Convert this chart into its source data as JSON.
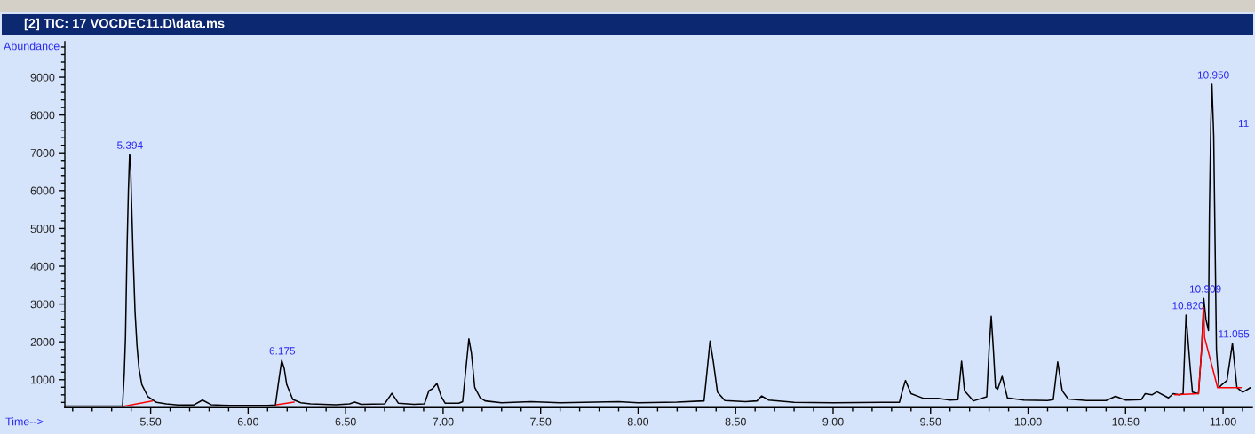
{
  "chart_data": {
    "type": "line",
    "title": "[2] TIC: 17 VOCDEC11.D\\data.ms",
    "xlabel": "Time-->",
    "ylabel": "Abundance",
    "series": [
      {
        "color": "#000000",
        "x": [
          5.06,
          5.1,
          5.2,
          5.3,
          5.35,
          5.356,
          5.365,
          5.371,
          5.379,
          5.386,
          5.392,
          5.396,
          5.401,
          5.41,
          5.42,
          5.43,
          5.44,
          5.455,
          5.485,
          5.53,
          5.58,
          5.64,
          5.72,
          5.766,
          5.81,
          5.9,
          6.0,
          6.1,
          6.14,
          6.155,
          6.172,
          6.185,
          6.198,
          6.229,
          6.27,
          6.32,
          6.45,
          6.52,
          6.547,
          6.58,
          6.7,
          6.737,
          6.77,
          6.85,
          6.904,
          6.927,
          6.945,
          6.968,
          6.99,
          7.01,
          7.08,
          7.1,
          7.115,
          7.132,
          7.145,
          7.162,
          7.19,
          7.215,
          7.3,
          7.45,
          7.6,
          7.9,
          8.0,
          8.2,
          8.338,
          8.355,
          8.369,
          8.385,
          8.407,
          8.445,
          8.55,
          8.61,
          8.634,
          8.67,
          8.8,
          9.0,
          9.25,
          9.34,
          9.355,
          9.371,
          9.4,
          9.462,
          9.538,
          9.6,
          9.64,
          9.659,
          9.674,
          9.72,
          9.788,
          9.8,
          9.811,
          9.822,
          9.833,
          9.844,
          9.867,
          9.894,
          9.978,
          10.1,
          10.129,
          10.152,
          10.175,
          10.206,
          10.3,
          10.4,
          10.448,
          10.5,
          10.58,
          10.6,
          10.635,
          10.661,
          10.72,
          10.744,
          10.775,
          10.795,
          10.81,
          10.831,
          10.843,
          10.874,
          10.89,
          10.901,
          10.912,
          10.925,
          10.93,
          10.937,
          10.943,
          10.952,
          10.959,
          10.966,
          10.979,
          10.99,
          11.02,
          11.048,
          11.071,
          11.101,
          11.14
        ],
        "values": [
          300,
          300,
          300,
          300,
          300,
          310,
          1200,
          2120,
          4470,
          6000,
          6950,
          6900,
          5900,
          4300,
          2800,
          1900,
          1300,
          870,
          560,
          400,
          360,
          330,
          330,
          460,
          340,
          320,
          320,
          320,
          330,
          900,
          1510,
          1300,
          870,
          480,
          390,
          360,
          340,
          360,
          410,
          350,
          360,
          640,
          380,
          350,
          360,
          710,
          760,
          900,
          560,
          380,
          380,
          420,
          1200,
          2080,
          1700,
          800,
          520,
          440,
          390,
          420,
          390,
          420,
          390,
          410,
          440,
          1300,
          2020,
          1500,
          670,
          450,
          420,
          440,
          570,
          460,
          400,
          390,
          400,
          400,
          700,
          980,
          630,
          510,
          510,
          460,
          470,
          1490,
          710,
          440,
          550,
          1800,
          2680,
          1800,
          790,
          750,
          1090,
          520,
          460,
          450,
          470,
          1470,
          710,
          490,
          450,
          450,
          560,
          460,
          470,
          630,
          600,
          680,
          520,
          630,
          600,
          630,
          2710,
          1340,
          670,
          630,
          1810,
          3150,
          2600,
          2300,
          5400,
          7750,
          8810,
          7440,
          4630,
          1800,
          790,
          850,
          980,
          1960,
          790,
          670,
          790
        ]
      },
      {
        "color": "#ff0000",
        "x": [
          5.356,
          5.508,
          5.8,
          6.145,
          6.236,
          8.0,
          10.752,
          10.874,
          10.89,
          10.901,
          10.905,
          10.972,
          11.093
        ],
        "values": [
          290,
          440,
          null,
          340,
          410,
          null,
          600,
          630,
          1810,
          2900,
          2120,
          790,
          790
        ]
      }
    ],
    "annotations": [
      {
        "text": "5.394",
        "x": 5.394,
        "y": 6950
      },
      {
        "text": "6.175",
        "x": 6.175,
        "y": 1510
      },
      {
        "text": "10.820",
        "x": 10.82,
        "y": 2710
      },
      {
        "text": "10.909",
        "x": 10.909,
        "y": 3150
      },
      {
        "text": "10.950",
        "x": 10.95,
        "y": 8810
      },
      {
        "text": "11.055",
        "x": 11.055,
        "y": 1960
      },
      "11"
    ],
    "xlim": [
      5.06,
      11.15
    ],
    "ylim": [
      260,
      9940
    ],
    "xticks": [
      {
        "value": 5.1,
        "label": null
      },
      {
        "value": 5.2,
        "label": null
      },
      {
        "value": 5.3,
        "label": null
      },
      {
        "value": 5.4,
        "label": null
      },
      {
        "value": 5.5,
        "label": "5.50"
      },
      {
        "value": 5.6,
        "label": null
      },
      {
        "value": 5.7,
        "label": null
      },
      {
        "value": 5.8,
        "label": null
      },
      {
        "value": 5.9,
        "label": null
      },
      {
        "value": 6.0,
        "label": "6.00"
      },
      {
        "value": 6.1,
        "label": null
      },
      {
        "value": 6.2,
        "label": null
      },
      {
        "value": 6.3,
        "label": null
      },
      {
        "value": 6.4,
        "label": null
      },
      {
        "value": 6.5,
        "label": "6.50"
      },
      {
        "value": 6.6,
        "label": null
      },
      {
        "value": 6.7,
        "label": null
      },
      {
        "value": 6.8,
        "label": null
      },
      {
        "value": 6.9,
        "label": null
      },
      {
        "value": 7.0,
        "label": "7.00"
      },
      {
        "value": 7.1,
        "label": null
      },
      {
        "value": 7.2,
        "label": null
      },
      {
        "value": 7.3,
        "label": null
      },
      {
        "value": 7.4,
        "label": null
      },
      {
        "value": 7.5,
        "label": "7.50"
      },
      {
        "value": 7.6,
        "label": null
      },
      {
        "value": 7.7,
        "label": null
      },
      {
        "value": 7.8,
        "label": null
      },
      {
        "value": 7.9,
        "label": null
      },
      {
        "value": 8.0,
        "label": "8.00"
      },
      {
        "value": 8.1,
        "label": null
      },
      {
        "value": 8.2,
        "label": null
      },
      {
        "value": 8.3,
        "label": null
      },
      {
        "value": 8.4,
        "label": null
      },
      {
        "value": 8.5,
        "label": "8.50"
      },
      {
        "value": 8.6,
        "label": null
      },
      {
        "value": 8.7,
        "label": null
      },
      {
        "value": 8.8,
        "label": null
      },
      {
        "value": 8.9,
        "label": null
      },
      {
        "value": 9.0,
        "label": "9.00"
      },
      {
        "value": 9.1,
        "label": null
      },
      {
        "value": 9.2,
        "label": null
      },
      {
        "value": 9.3,
        "label": null
      },
      {
        "value": 9.4,
        "label": null
      },
      {
        "value": 9.5,
        "label": "9.50"
      },
      {
        "value": 9.6,
        "label": null
      },
      {
        "value": 9.7,
        "label": null
      },
      {
        "value": 9.8,
        "label": null
      },
      {
        "value": 9.9,
        "label": null
      },
      {
        "value": 10.0,
        "label": "10.00"
      },
      {
        "value": 10.1,
        "label": null
      },
      {
        "value": 10.2,
        "label": null
      },
      {
        "value": 10.3,
        "label": null
      },
      {
        "value": 10.4,
        "label": null
      },
      {
        "value": 10.5,
        "label": "10.50"
      },
      {
        "value": 10.6,
        "label": null
      },
      {
        "value": 10.7,
        "label": null
      },
      {
        "value": 10.8,
        "label": null
      },
      {
        "value": 10.9,
        "label": null
      },
      {
        "value": 11.0,
        "label": "11.00"
      },
      {
        "value": 11.1,
        "label": null
      }
    ],
    "yticks": [
      {
        "value": 400,
        "label": null
      },
      {
        "value": 600,
        "label": null
      },
      {
        "value": 800,
        "label": null
      },
      1000,
      {
        "value": 1200,
        "label": null
      },
      {
        "value": 1400,
        "label": null
      },
      {
        "value": 1600,
        "label": null
      },
      {
        "value": 1800,
        "label": null
      },
      2000,
      {
        "value": 2200,
        "label": null
      },
      {
        "value": 2400,
        "label": null
      },
      {
        "value": 2600,
        "label": null
      },
      {
        "value": 2800,
        "label": null
      },
      3000,
      {
        "value": 3200,
        "label": null
      },
      {
        "value": 3400,
        "label": null
      },
      {
        "value": 3600,
        "label": null
      },
      {
        "value": 3800,
        "label": null
      },
      4000,
      {
        "value": 4200,
        "label": null
      },
      {
        "value": 4400,
        "label": null
      },
      {
        "value": 4600,
        "label": null
      },
      {
        "value": 4800,
        "label": null
      },
      5000,
      {
        "value": 5200,
        "label": null
      },
      {
        "value": 5400,
        "label": null
      },
      {
        "value": 5600,
        "label": null
      },
      {
        "value": 5800,
        "label": null
      },
      6000,
      {
        "value": 6200,
        "label": null
      },
      {
        "value": 6400,
        "label": null
      },
      {
        "value": 6600,
        "label": null
      },
      {
        "value": 6800,
        "label": null
      },
      7000,
      {
        "value": 7200,
        "label": null
      },
      {
        "value": 7400,
        "label": null
      },
      {
        "value": 7600,
        "label": null
      },
      {
        "value": 7800,
        "label": null
      },
      8000,
      {
        "value": 8200,
        "label": null
      },
      {
        "value": 8400,
        "label": null
      },
      {
        "value": 8600,
        "label": null
      },
      {
        "value": 8800,
        "label": null
      },
      9000,
      {
        "value": 9200,
        "label": null
      },
      {
        "value": 9400,
        "label": null
      },
      {
        "value": 9600,
        "label": null
      },
      {
        "value": 9800,
        "label": null
      }
    ]
  }
}
